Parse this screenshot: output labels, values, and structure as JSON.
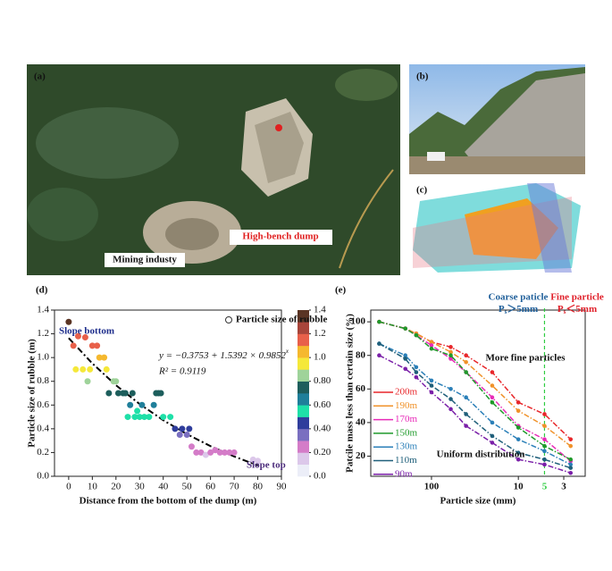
{
  "figure": {
    "panels": [
      {
        "label": "(a)",
        "annotations": [
          "Mining industy",
          "High-bench dump"
        ]
      },
      {
        "label": "(b)"
      },
      {
        "label": "(c)"
      }
    ]
  },
  "chart_data": [
    {
      "type": "scatter",
      "panel_label": "(d)",
      "x_label": "Distance from the bottom of the dump (m)",
      "y_label": "Particle size of rubble (m)",
      "legend": "Particle size of rubble",
      "equation": "y = −0.3753 + 1.5392 × 0.9852",
      "equation_exponent": "x",
      "r_squared": "R² = 0.9119",
      "annotations": [
        "Slope bottom",
        "Slope top"
      ],
      "x": [
        0,
        2,
        4,
        7,
        10,
        12,
        3,
        6,
        9,
        8,
        13,
        15,
        16,
        17,
        19,
        20,
        21,
        23,
        24,
        26,
        27,
        25,
        28,
        30,
        32,
        34,
        29,
        31,
        36,
        37,
        38,
        39,
        40,
        43,
        45,
        47,
        48,
        50,
        51,
        52,
        54,
        56,
        58,
        60,
        62,
        64,
        66,
        68,
        70,
        78,
        80
      ],
      "values": [
        1.3,
        1.1,
        1.18,
        1.17,
        1.1,
        1.1,
        0.9,
        0.9,
        0.9,
        0.8,
        1.0,
        1.0,
        0.9,
        0.7,
        0.8,
        0.8,
        0.7,
        0.7,
        0.7,
        0.6,
        0.7,
        0.5,
        0.5,
        0.5,
        0.5,
        0.5,
        0.55,
        0.6,
        0.6,
        0.7,
        0.7,
        0.7,
        0.5,
        0.5,
        0.4,
        0.35,
        0.4,
        0.35,
        0.4,
        0.25,
        0.2,
        0.2,
        0.18,
        0.2,
        0.22,
        0.2,
        0.2,
        0.2,
        0.2,
        0.14,
        0.13
      ],
      "fit": {
        "x": [
          0,
          10,
          20,
          30,
          40,
          50,
          60,
          70,
          80
        ],
        "values": [
          1.1639,
          0.9508,
          0.767,
          0.6087,
          0.4725,
          0.3551,
          0.2539,
          0.1667,
          0.0917
        ]
      },
      "xlim": [
        -6,
        90
      ],
      "xticks": [
        0,
        10,
        20,
        30,
        40,
        50,
        60,
        70,
        80,
        90
      ],
      "ylim": [
        0,
        1.4
      ],
      "yticks": [
        {
          "value": 0,
          "label": "0.0"
        },
        0.2,
        0.4,
        0.6,
        0.8,
        {
          "value": 1,
          "label": "1.0"
        },
        1.2,
        1.4
      ],
      "colorbar": {
        "lim": [
          0,
          1.4
        ],
        "ticks": [
          {
            "value": 0,
            "label": "0.0"
          },
          {
            "value": 0.2,
            "label": "0.20"
          },
          {
            "value": 0.4,
            "label": "0.40"
          },
          {
            "value": 0.6,
            "label": "0.60"
          },
          {
            "value": 0.8,
            "label": "0.80"
          },
          {
            "value": 1,
            "label": "1.0"
          },
          1.2,
          1.4
        ],
        "colors": [
          "#eceef8",
          "#dcc8ea",
          "#d47cc8",
          "#7a6fc0",
          "#2f3d9c",
          "#1ee0a8",
          "#1f7f9a",
          "#1d5e5c",
          "#9fd39a",
          "#f5e83a",
          "#f5b82e",
          "#e8604a",
          "#a8453a",
          "#5a3424"
        ]
      }
    },
    {
      "type": "line",
      "panel_label": "(e)",
      "x_label": "Particle size (mm)",
      "y_label": "Patcile mass less than certain size (%)",
      "x": [
        400,
        200,
        150,
        100,
        60,
        40,
        20,
        10,
        5,
        2.5
      ],
      "xlim": [
        500,
        1.7
      ],
      "xscale": "log",
      "xticks": [
        100,
        10,
        3
      ],
      "ylim": [
        8,
        107
      ],
      "yticks": [
        20,
        40,
        60,
        80,
        100
      ],
      "boundary": {
        "x": 5,
        "color": "#2ecc40"
      },
      "annotations": {
        "coarse": {
          "title": "Coarse paticle",
          "symbol": "P",
          "subscript": "s",
          "condition": "＞5mm",
          "color": "#1f5f9a"
        },
        "fine": {
          "title": "Fine particle",
          "symbol": "P",
          "subscript": "s",
          "condition": "＜5mm",
          "color": "#e0202a"
        },
        "more_fine": "More fine particles",
        "uniform": "Uniform distribution"
      },
      "series": [
        {
          "name": "200m",
          "color": "#e8262a",
          "values": [
            100,
            96,
            93,
            88,
            85,
            80,
            70,
            52,
            45,
            30
          ]
        },
        {
          "name": "190m",
          "color": "#f0922a",
          "values": [
            100,
            96,
            93,
            88,
            82,
            76,
            62,
            47,
            38,
            26
          ]
        },
        {
          "name": "170m",
          "color": "#e82ab8",
          "values": [
            100,
            96,
            92,
            86,
            78,
            70,
            55,
            38,
            30,
            17
          ]
        },
        {
          "name": "150m",
          "color": "#1f9a2a",
          "values": [
            100,
            96,
            92,
            84,
            80,
            70,
            52,
            37,
            26,
            18
          ]
        },
        {
          "name": "130m",
          "color": "#2a7fb8",
          "values": [
            87,
            80,
            73,
            65,
            60,
            55,
            40,
            30,
            23,
            15
          ]
        },
        {
          "name": "110m",
          "color": "#1f5f7a",
          "values": [
            87,
            78,
            70,
            62,
            54,
            45,
            32,
            22,
            18,
            13
          ]
        },
        {
          "name": "90m",
          "color": "#7a1fa8",
          "values": [
            80,
            72,
            67,
            58,
            48,
            38,
            28,
            18,
            15,
            10
          ]
        }
      ]
    }
  ]
}
